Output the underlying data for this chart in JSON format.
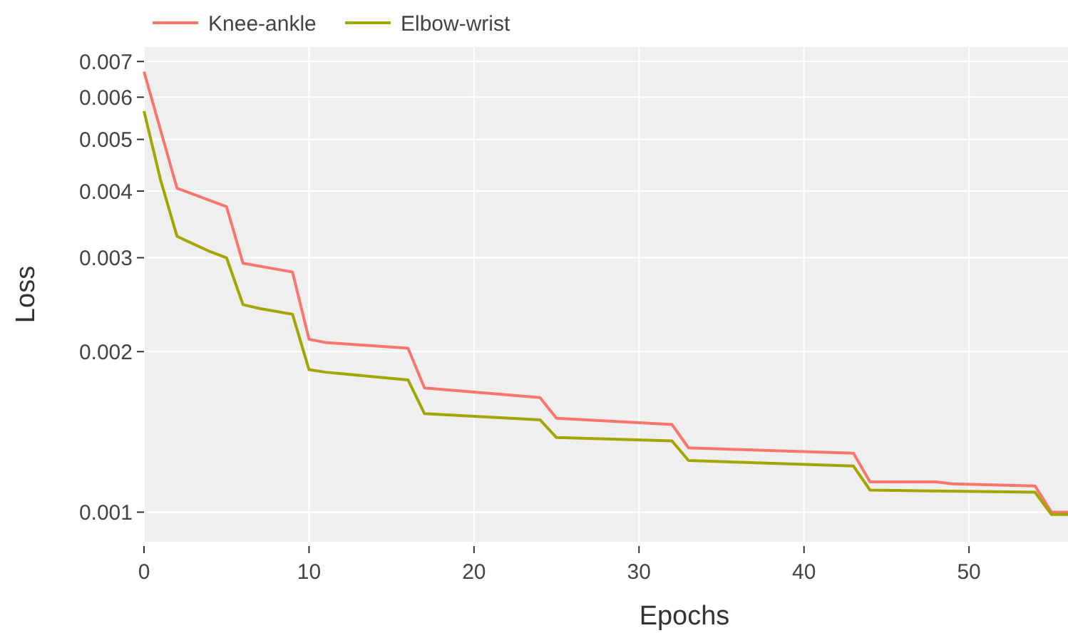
{
  "chart_data": {
    "type": "line",
    "xlabel": "Epochs",
    "ylabel": "Loss",
    "log": "y",
    "grid": true,
    "legend": "top",
    "line_style": "solid",
    "marker": "none",
    "xlim": [
      0,
      56
    ],
    "xticks": [
      0,
      10,
      20,
      30,
      40,
      50
    ],
    "ylim": [
      0.00088,
      0.00745
    ],
    "yticks": [
      0.001,
      0.002,
      0.003,
      0.004,
      0.005,
      0.006,
      0.007
    ],
    "x": [
      0,
      2,
      5,
      6,
      9,
      10,
      11,
      16,
      17,
      24,
      25,
      32,
      33,
      43,
      44,
      48,
      49,
      54,
      55,
      56
    ],
    "series": [
      {
        "name": "Knee-ankle",
        "color": "#f8766d",
        "values": [
          0.0067,
          0.00405,
          0.00374,
          0.00293,
          0.00282,
          0.00211,
          0.00208,
          0.00203,
          0.00171,
          0.00164,
          0.0015,
          0.00146,
          0.00132,
          0.00129,
          0.00114,
          0.00114,
          0.00113,
          0.00112,
          0.001,
          0.001
        ]
      },
      {
        "name": "Elbow-wrist",
        "color": "#a3a500",
        "x": [
          0,
          1,
          2,
          4,
          5,
          6,
          7,
          9,
          10,
          11,
          16,
          17,
          24,
          25,
          32,
          33,
          43,
          44,
          54,
          55,
          56
        ],
        "values": [
          0.00565,
          0.0042,
          0.00329,
          0.00308,
          0.003,
          0.00245,
          0.00241,
          0.00235,
          0.00185,
          0.00183,
          0.00177,
          0.00153,
          0.00149,
          0.00138,
          0.00136,
          0.00125,
          0.00122,
          0.0011,
          0.00109,
          0.00099,
          0.00099
        ]
      }
    ]
  }
}
